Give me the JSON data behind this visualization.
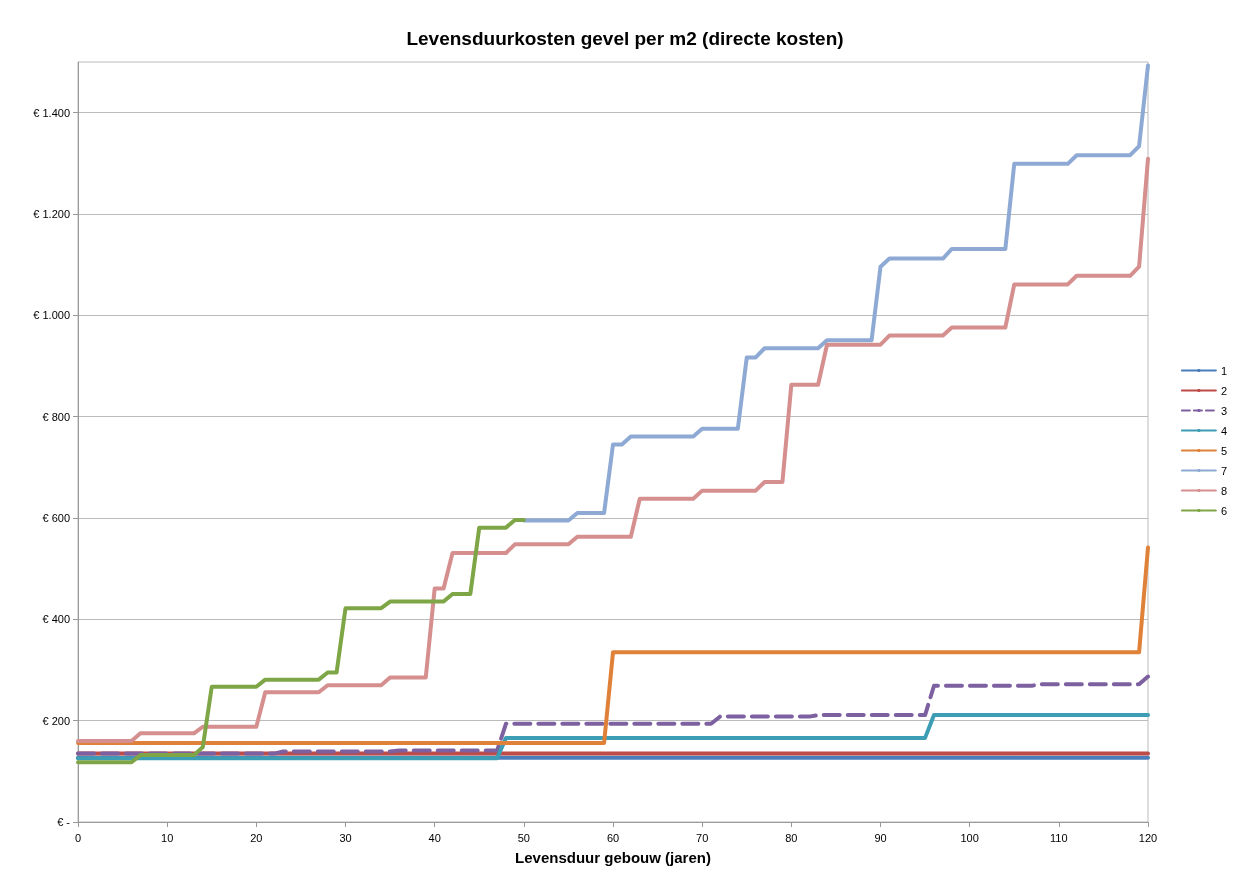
{
  "chart_data": {
    "type": "line",
    "title": "Levensduurkosten gevel per m2 (directe kosten)",
    "xlabel": "Levensduur gebouw (jaren)",
    "xlim": [
      0,
      120
    ],
    "xticks": [
      0,
      10,
      20,
      30,
      40,
      50,
      60,
      70,
      80,
      90,
      100,
      110,
      120
    ],
    "ylim": [
      0,
      1500
    ],
    "yticks": [
      {
        "value": 0,
        "label": "€ -"
      },
      {
        "value": 200,
        "label": "€ 200"
      },
      {
        "value": 400,
        "label": "€ 400"
      },
      {
        "value": 600,
        "label": "€ 600"
      },
      {
        "value": 800,
        "label": "€ 800"
      },
      {
        "value": 1000,
        "label": "€ 1.000"
      },
      {
        "value": 1200,
        "label": "€ 1.200"
      },
      {
        "value": 1400,
        "label": "€ 1.400"
      }
    ],
    "grid": "y",
    "legend": "right",
    "marker": "none",
    "line_style": "solid",
    "series": [
      {
        "name": "1",
        "color": "#4a7ebb",
        "x": [
          0,
          120
        ],
        "values": [
          127,
          127
        ]
      },
      {
        "name": "2",
        "color": "#be4b48",
        "x": [
          0,
          120
        ],
        "values": [
          135,
          135
        ]
      },
      {
        "name": "3",
        "color": "#7d60a0",
        "line_style": "dashed",
        "x": [
          0,
          22,
          23,
          35,
          36,
          47,
          48,
          71,
          72,
          82,
          83,
          95,
          96,
          107,
          108,
          119,
          120
        ],
        "values": [
          135,
          135,
          139,
          139,
          141,
          141,
          194,
          194,
          208,
          208,
          211,
          211,
          269,
          269,
          272,
          272,
          287
        ]
      },
      {
        "name": "4",
        "color": "#3c9db5",
        "x": [
          0,
          47,
          48,
          95,
          96,
          120
        ],
        "values": [
          126,
          126,
          166,
          166,
          211,
          211
        ]
      },
      {
        "name": "5",
        "color": "#e0813a",
        "x": [
          0,
          59,
          60,
          119,
          120
        ],
        "values": [
          156,
          156,
          335,
          335,
          542
        ]
      },
      {
        "name": "7",
        "color": "#8eaad4",
        "x": [
          50,
          55,
          56,
          59,
          60,
          61,
          62,
          69,
          70,
          74,
          75,
          76,
          77,
          83,
          84,
          89,
          90,
          91,
          97,
          98,
          104,
          105,
          111,
          112,
          118,
          119,
          120
        ],
        "values": [
          595,
          595,
          610,
          610,
          745,
          745,
          761,
          761,
          776,
          776,
          917,
          917,
          935,
          935,
          951,
          951,
          1096,
          1112,
          1112,
          1131,
          1131,
          1299,
          1299,
          1316,
          1316,
          1334,
          1493
        ]
      },
      {
        "name": "8",
        "color": "#d48f8e",
        "x": [
          0,
          6,
          7,
          13,
          14,
          20,
          21,
          27,
          28,
          34,
          35,
          39,
          40,
          41,
          42,
          48,
          49,
          55,
          56,
          62,
          63,
          69,
          70,
          76,
          77,
          79,
          80,
          83,
          84,
          90,
          91,
          97,
          98,
          104,
          105,
          111,
          112,
          118,
          119,
          120
        ],
        "values": [
          160,
          160,
          175,
          175,
          188,
          188,
          256,
          256,
          270,
          270,
          285,
          285,
          461,
          461,
          531,
          531,
          548,
          548,
          563,
          563,
          638,
          638,
          654,
          654,
          671,
          671,
          863,
          863,
          942,
          942,
          960,
          960,
          976,
          976,
          1061,
          1061,
          1078,
          1078,
          1096,
          1309
        ]
      },
      {
        "name": "6",
        "color": "#7ea646",
        "x": [
          0,
          6,
          7,
          13,
          14,
          15,
          20,
          21,
          27,
          28,
          29,
          30,
          34,
          35,
          41,
          42,
          44,
          45,
          48,
          49,
          50
        ],
        "values": [
          118,
          118,
          132,
          132,
          148,
          267,
          267,
          281,
          281,
          295,
          295,
          422,
          422,
          435,
          435,
          450,
          450,
          581,
          581,
          596,
          596
        ]
      }
    ]
  }
}
